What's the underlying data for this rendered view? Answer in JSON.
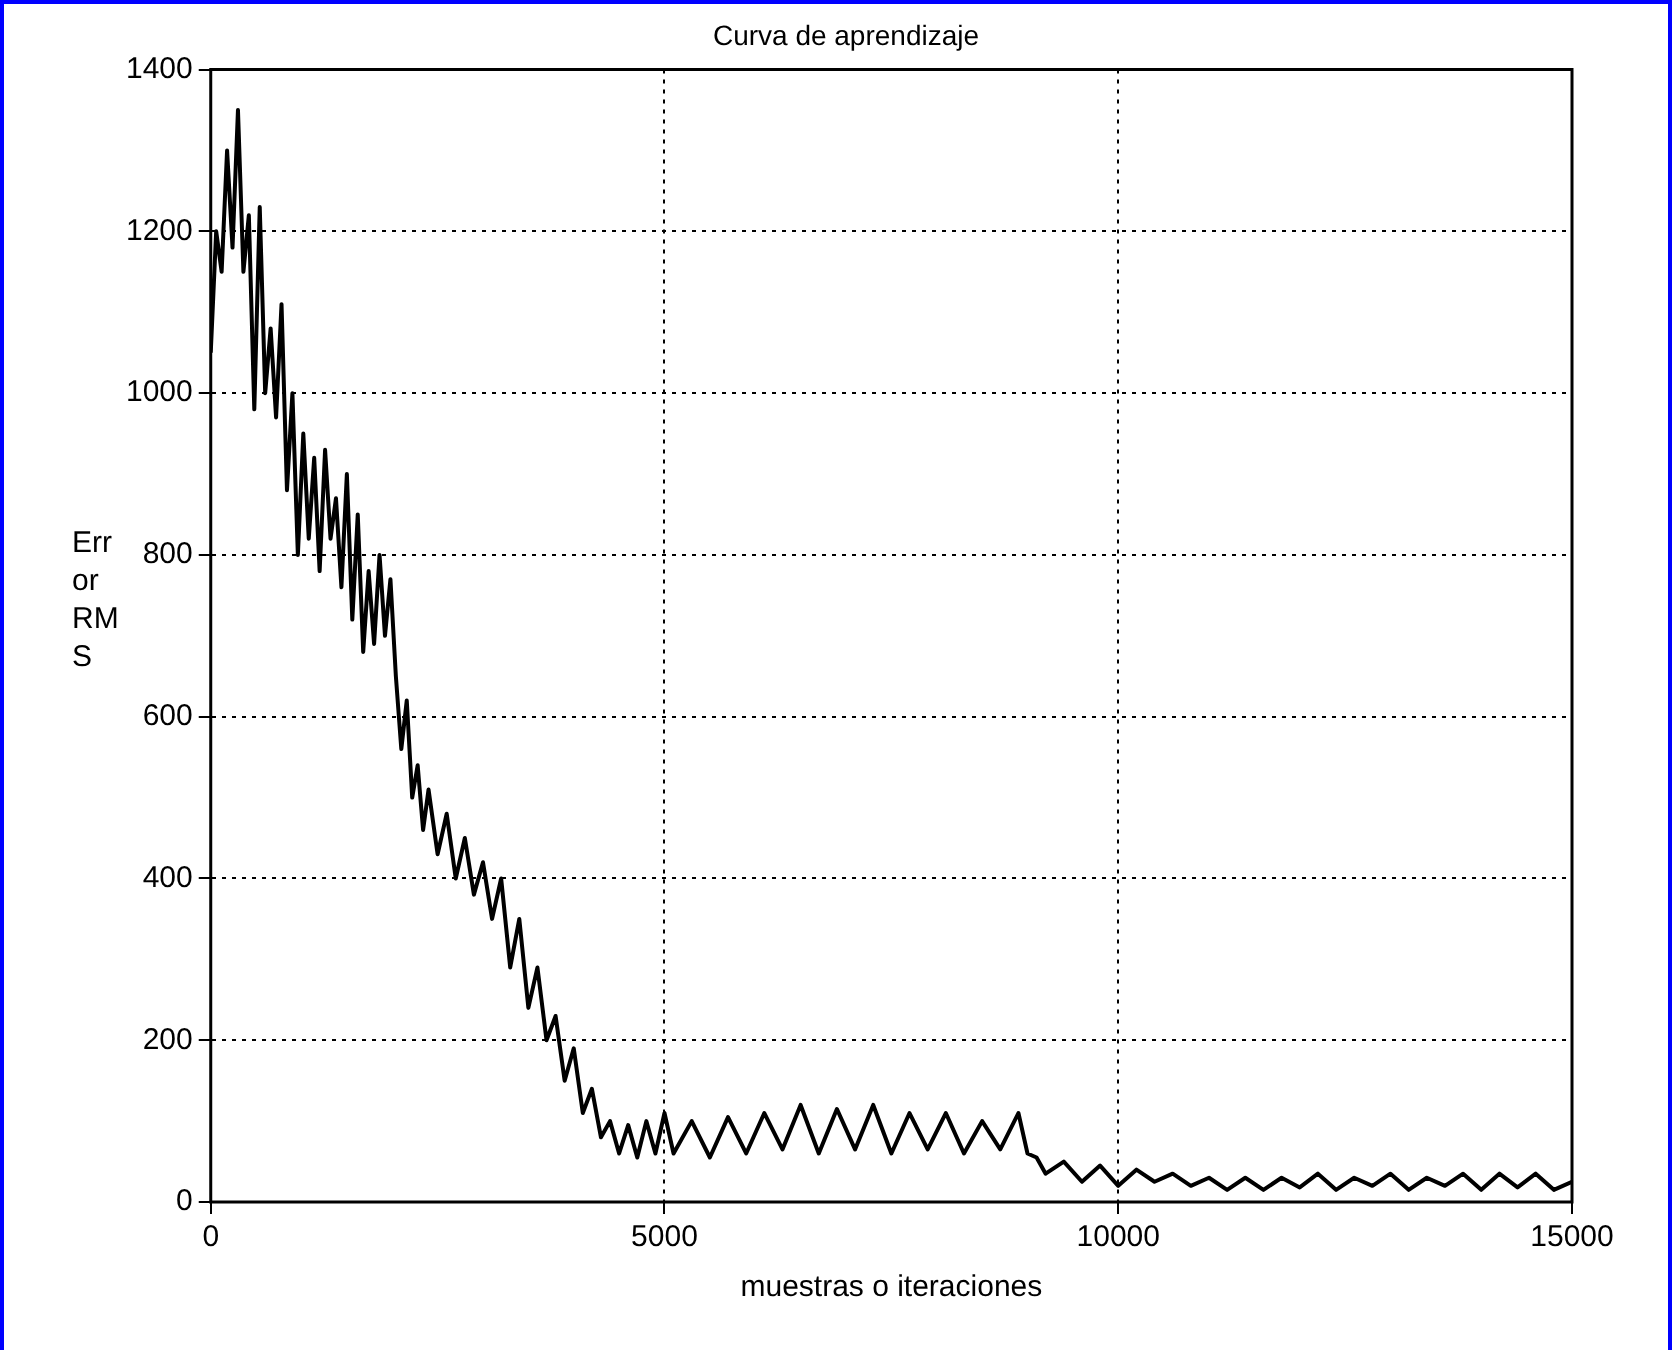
{
  "chart_data": {
    "type": "line",
    "title": "Curva de aprendizaje",
    "xlabel": "muestras o iteraciones",
    "ylabel": "Error RMS",
    "xlim": [
      0,
      15000
    ],
    "ylim": [
      0,
      1400
    ],
    "xticks": [
      0,
      5000,
      10000,
      15000
    ],
    "yticks": [
      0,
      200,
      400,
      600,
      800,
      1000,
      1200,
      1400
    ],
    "grid": true,
    "legend": false,
    "marker": "none",
    "line_style": "solid",
    "series": [
      {
        "color": "#000000",
        "x": [
          0,
          60,
          120,
          180,
          240,
          300,
          360,
          420,
          480,
          540,
          600,
          660,
          720,
          780,
          840,
          900,
          960,
          1020,
          1080,
          1140,
          1200,
          1260,
          1320,
          1380,
          1440,
          1500,
          1560,
          1620,
          1680,
          1740,
          1800,
          1860,
          1920,
          1980,
          2040,
          2100,
          2160,
          2220,
          2280,
          2340,
          2400,
          2500,
          2600,
          2700,
          2800,
          2900,
          3000,
          3100,
          3200,
          3300,
          3400,
          3500,
          3600,
          3700,
          3800,
          3900,
          4000,
          4100,
          4200,
          4300,
          4400,
          4500,
          4600,
          4700,
          4800,
          4900,
          5000,
          5100,
          5300,
          5500,
          5700,
          5900,
          6100,
          6300,
          6500,
          6700,
          6900,
          7100,
          7300,
          7500,
          7700,
          7900,
          8100,
          8300,
          8500,
          8700,
          8900,
          9000,
          9100,
          9200,
          9400,
          9600,
          9800,
          10000,
          10200,
          10400,
          10600,
          10800,
          11000,
          11200,
          11400,
          11600,
          11800,
          12000,
          12200,
          12400,
          12600,
          12800,
          13000,
          13200,
          13400,
          13600,
          13800,
          14000,
          14200,
          14400,
          14600,
          14800,
          15000
        ],
        "values": [
          1050,
          1200,
          1150,
          1300,
          1180,
          1350,
          1150,
          1220,
          980,
          1230,
          1000,
          1080,
          970,
          1110,
          880,
          1000,
          800,
          950,
          820,
          920,
          780,
          930,
          820,
          870,
          760,
          900,
          720,
          850,
          680,
          780,
          690,
          800,
          700,
          770,
          650,
          560,
          620,
          500,
          540,
          460,
          510,
          430,
          480,
          400,
          450,
          380,
          420,
          350,
          400,
          290,
          350,
          240,
          290,
          200,
          230,
          150,
          190,
          110,
          140,
          80,
          100,
          60,
          95,
          55,
          100,
          60,
          110,
          60,
          100,
          55,
          105,
          60,
          110,
          65,
          120,
          60,
          115,
          65,
          120,
          60,
          110,
          65,
          110,
          60,
          100,
          65,
          110,
          60,
          55,
          35,
          50,
          25,
          45,
          20,
          40,
          25,
          35,
          20,
          30,
          15,
          30,
          15,
          30,
          18,
          35,
          15,
          30,
          20,
          35,
          15,
          30,
          20,
          35,
          15,
          35,
          18,
          35,
          15,
          25
        ]
      }
    ]
  }
}
